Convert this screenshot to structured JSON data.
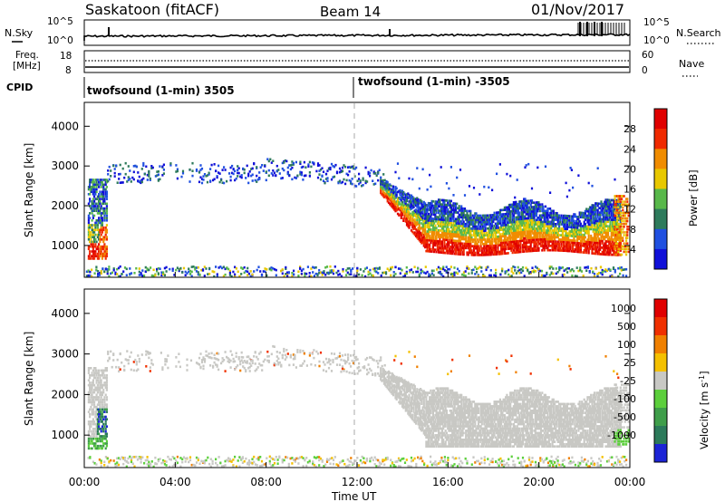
{
  "header": {
    "station": "Saskatoon (fitACF)",
    "beam": "Beam 14",
    "date": "01/Nov/2017"
  },
  "noise_panel": {
    "left_label": "N.Sky",
    "left_ticks": [
      "10^5",
      "10^0"
    ],
    "right_ticks": [
      "10^5",
      "10^0"
    ],
    "right_label": "N.Search"
  },
  "freq_panel": {
    "left_label_1": "Freq.",
    "left_label_2": "[MHz]",
    "left_ticks": [
      "18",
      "8"
    ],
    "right_ticks": [
      "60",
      "0"
    ],
    "right_label": "Nave"
  },
  "cpid": {
    "label": "CPID",
    "segments": [
      "twofsound (1-min) 3505",
      "twofsound (1-min) -3505"
    ]
  },
  "chart_data": [
    {
      "type": "heatmap",
      "panel": "power",
      "ylabel": "Slant Range [km]",
      "xlabel": "Time UT",
      "xlim_hours": [
        0,
        24
      ],
      "ylim_km": [
        200,
        4600
      ],
      "yticks": [
        "4000",
        "3000",
        "2000",
        "1000"
      ],
      "xticks": [
        "00:00",
        "04:00",
        "08:00",
        "12:00",
        "16:00",
        "20:00",
        "00:00"
      ],
      "colorbar_label": "Power [dB]",
      "colorbar_ticks": [
        "28",
        "24",
        "20",
        "16",
        "12",
        "8",
        "4"
      ],
      "colors": [
        "#1010d8",
        "#2050e0",
        "#2e7b5c",
        "#58b84a",
        "#e8c800",
        "#f08c00",
        "#f02a00",
        "#e00000"
      ]
    },
    {
      "type": "heatmap",
      "panel": "velocity",
      "ylabel": "Slant Range [km]",
      "xlabel": "Time UT",
      "xlim_hours": [
        0,
        24
      ],
      "ylim_km": [
        200,
        4600
      ],
      "yticks": [
        "4000",
        "3000",
        "2000",
        "1000"
      ],
      "xticks": [
        "00:00",
        "04:00",
        "08:00",
        "12:00",
        "16:00",
        "20:00",
        "00:00"
      ],
      "colorbar_label": "Velocity [m s",
      "colorbar_label_sup": "-1",
      "colorbar_label_end": "]",
      "colorbar_ticks": [
        "1000",
        "500",
        "100",
        "25",
        "-25",
        "-100",
        "-500",
        "-1000"
      ],
      "colors": [
        "#1c24d6",
        "#2c7a5a",
        "#3f9e4a",
        "#5ccf3c",
        "#c8c8c4",
        "#f4c000",
        "#f08000",
        "#f03000",
        "#e00000"
      ]
    }
  ],
  "time_axis": {
    "label": "Time UT",
    "ticks": [
      "00:00",
      "04:00",
      "08:00",
      "12:00",
      "16:00",
      "20:00",
      "00:00"
    ]
  }
}
